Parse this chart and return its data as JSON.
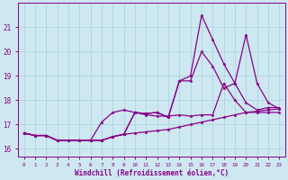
{
  "background_color": "#cde8f0",
  "grid_color": "#a8d0dc",
  "line_color": "#880088",
  "xlabel": "Windchill (Refroidissement éolien,°C)",
  "xlim": [
    -0.5,
    23.5
  ],
  "ylim": [
    15.7,
    22.0
  ],
  "yticks": [
    16,
    17,
    18,
    19,
    20,
    21
  ],
  "xticks": [
    0,
    1,
    2,
    3,
    4,
    5,
    6,
    7,
    8,
    9,
    10,
    11,
    12,
    13,
    14,
    15,
    16,
    17,
    18,
    19,
    20,
    21,
    22,
    23
  ],
  "series": [
    {
      "x": [
        0,
        1,
        2,
        3,
        4,
        5,
        6,
        7,
        8,
        9,
        10,
        11,
        12,
        13,
        14,
        15,
        16,
        17,
        18,
        19,
        20,
        21,
        22,
        23
      ],
      "y": [
        16.65,
        16.55,
        16.55,
        16.35,
        16.35,
        16.35,
        16.35,
        16.35,
        16.5,
        16.6,
        16.65,
        16.7,
        16.75,
        16.8,
        16.9,
        17.0,
        17.1,
        17.2,
        17.3,
        17.4,
        17.5,
        17.55,
        17.6,
        17.65
      ]
    },
    {
      "x": [
        0,
        1,
        2,
        3,
        4,
        5,
        6,
        7,
        8,
        9,
        10,
        11,
        12,
        13,
        14,
        15,
        16,
        17,
        18,
        19,
        20,
        21,
        22,
        23
      ],
      "y": [
        16.65,
        16.55,
        16.55,
        16.35,
        16.35,
        16.35,
        16.35,
        16.35,
        16.5,
        16.6,
        17.5,
        17.45,
        17.5,
        17.3,
        18.8,
        18.8,
        20.0,
        19.4,
        18.5,
        18.7,
        17.9,
        17.6,
        17.7,
        17.7
      ]
    },
    {
      "x": [
        0,
        1,
        2,
        3,
        4,
        5,
        6,
        7,
        8,
        9,
        10,
        11,
        12,
        13,
        14,
        15,
        16,
        17,
        18,
        19,
        20,
        21,
        22,
        23
      ],
      "y": [
        16.65,
        16.55,
        16.55,
        16.35,
        16.35,
        16.35,
        16.35,
        17.1,
        17.5,
        17.6,
        17.5,
        17.4,
        17.35,
        17.35,
        17.4,
        17.35,
        17.4,
        17.4,
        18.7,
        18.0,
        17.5,
        17.5,
        17.5,
        17.5
      ]
    },
    {
      "x": [
        0,
        1,
        2,
        3,
        4,
        5,
        6,
        7,
        8,
        9,
        10,
        11,
        12,
        13,
        14,
        15,
        16,
        17,
        18,
        19,
        20,
        21,
        22,
        23
      ],
      "y": [
        16.65,
        16.55,
        16.55,
        16.35,
        16.35,
        16.35,
        16.35,
        16.35,
        16.5,
        16.6,
        17.5,
        17.45,
        17.5,
        17.3,
        18.8,
        19.0,
        21.5,
        20.5,
        19.5,
        18.7,
        20.7,
        18.7,
        17.9,
        17.65
      ]
    }
  ]
}
